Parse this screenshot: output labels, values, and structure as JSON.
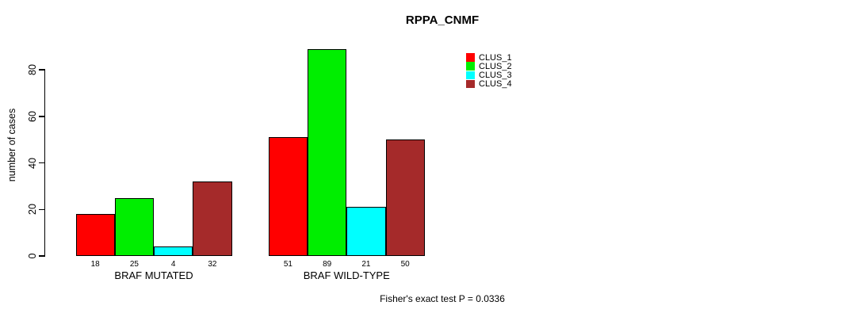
{
  "chart_data": {
    "type": "bar",
    "title": "RPPA_CNMF",
    "xlabel": "",
    "ylabel": "number of cases",
    "categories": [
      "BRAF MUTATED",
      "BRAF WILD-TYPE"
    ],
    "series": [
      {
        "name": "CLUS_1",
        "color": "#ff0000",
        "values": [
          18,
          51
        ]
      },
      {
        "name": "CLUS_2",
        "color": "#00ee00",
        "values": [
          25,
          89
        ]
      },
      {
        "name": "CLUS_3",
        "color": "#00ffff",
        "values": [
          4,
          21
        ]
      },
      {
        "name": "CLUS_4",
        "color": "#a52a2a",
        "values": [
          32,
          50
        ]
      }
    ],
    "bar_value_labels": [
      [
        "18",
        "25",
        "4",
        "32"
      ],
      [
        "51",
        "89",
        "21",
        "50"
      ]
    ],
    "yticks": [
      0,
      20,
      40,
      60,
      80
    ],
    "ylim": [
      0,
      89
    ],
    "grid": false,
    "legend_position": "top-right",
    "annotation": "Fisher's exact test P = 0.0336",
    "background": "#ffffff",
    "axis_color": "#000000"
  }
}
